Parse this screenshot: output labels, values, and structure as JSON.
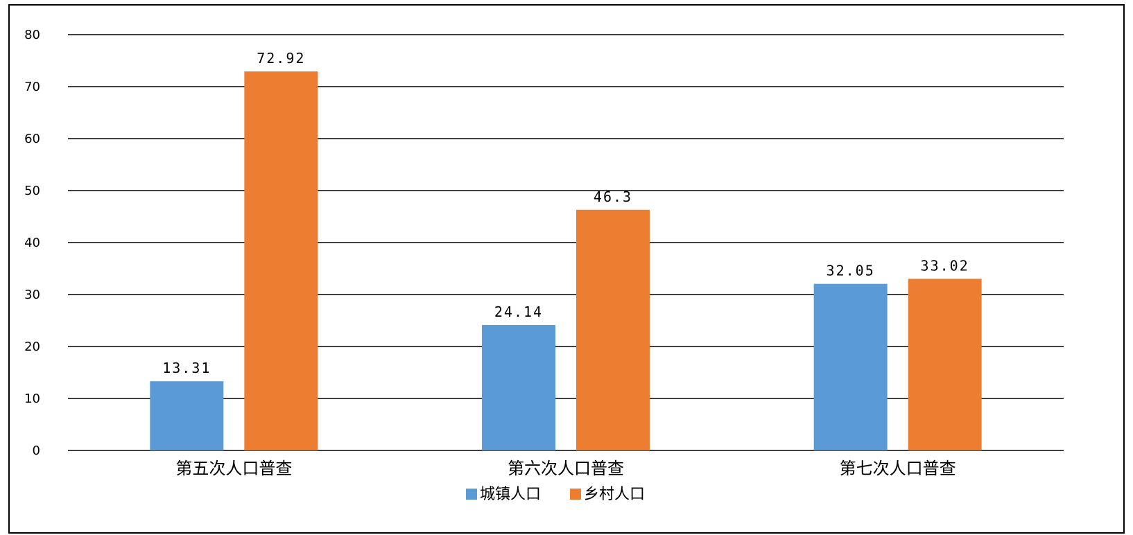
{
  "chart_data": {
    "type": "bar",
    "categories": [
      "第五次人口普查",
      "第六次人口普查",
      "第七次人口普查"
    ],
    "series": [
      {
        "name": "城镇人口",
        "values": [
          13.31,
          24.14,
          32.05
        ],
        "labels": [
          "13.31",
          "24.14",
          "32.05"
        ],
        "color": "#5B9BD5"
      },
      {
        "name": "乡村人口",
        "values": [
          72.92,
          46.3,
          33.02
        ],
        "labels": [
          "72.92",
          "46.3",
          "33.02"
        ],
        "color": "#ED7D31"
      }
    ],
    "yticks": [
      "0",
      "10",
      "20",
      "30",
      "40",
      "50",
      "60",
      "70",
      "80"
    ],
    "ylim": [
      0,
      80
    ],
    "grid": true,
    "legend_position": "bottom-center"
  }
}
